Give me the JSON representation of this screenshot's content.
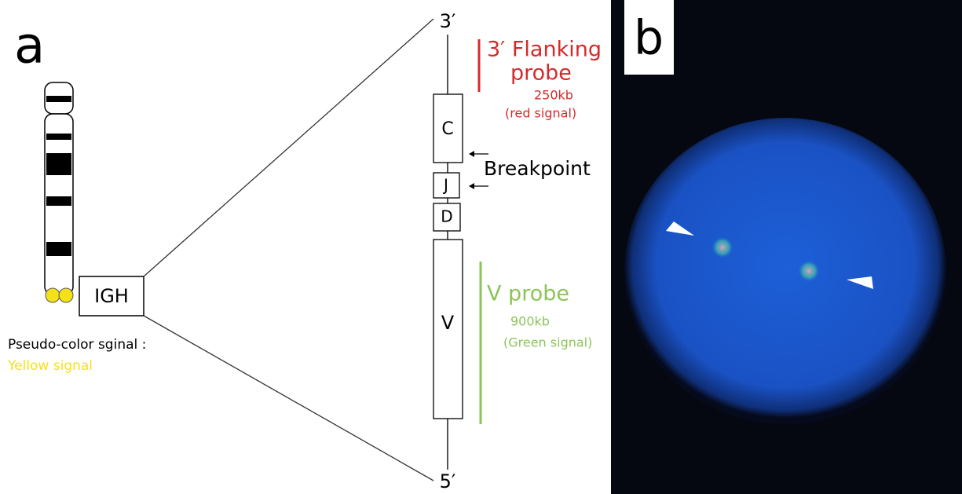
{
  "panel_a": {
    "label": "a",
    "top_end": "3′",
    "bottom_end": "5′",
    "segments": [
      "C",
      "J",
      "D",
      "V"
    ],
    "gene": "IGH",
    "flanking_probe": {
      "title_line1": "3′ Flanking",
      "title_line2": "probe",
      "size": "250kb",
      "signal": "(red signal)"
    },
    "breakpoint": "Breakpoint",
    "v_probe": {
      "title": "V probe",
      "size": "900kb",
      "signal": "(Green signal)"
    },
    "note": {
      "line1": "Pseudo-color sginal :",
      "line2": "Yellow signal"
    }
  },
  "panel_b": {
    "label": "b"
  }
}
